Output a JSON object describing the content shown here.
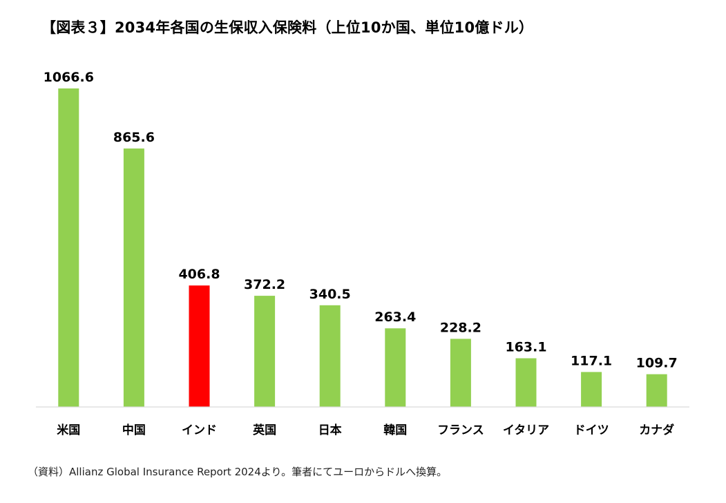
{
  "title": "【図表３】2034年各国の生保収入保険料（上位10か国、単位10億ドル）",
  "source": "（資料）Allianz Global Insurance Report 2024より。筆者にてユーロからドルへ換算。",
  "chart_data": {
    "type": "bar",
    "categories": [
      "米国",
      "中国",
      "インド",
      "英国",
      "日本",
      "韓国",
      "フランス",
      "イタリア",
      "ドイツ",
      "カナダ"
    ],
    "values": [
      1066.6,
      865.6,
      406.8,
      372.2,
      340.5,
      263.4,
      228.2,
      163.1,
      117.1,
      109.7
    ],
    "value_labels": [
      "1066.6",
      "865.6",
      "406.8",
      "372.2",
      "340.5",
      "263.4",
      "228.2",
      "163.1",
      "117.1",
      "109.7"
    ],
    "colors": [
      "#92d050",
      "#92d050",
      "#ff0000",
      "#92d050",
      "#92d050",
      "#92d050",
      "#92d050",
      "#92d050",
      "#92d050",
      "#92d050"
    ],
    "highlight": "インド",
    "ylim": [
      0,
      1100
    ],
    "grid": false,
    "legend": "none"
  }
}
